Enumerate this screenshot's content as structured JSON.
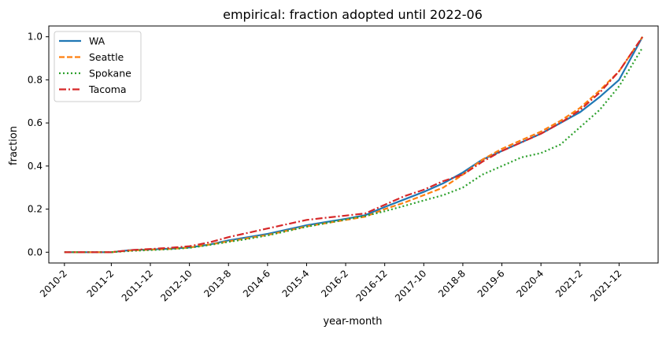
{
  "chart_data": {
    "type": "line",
    "title": "empirical: fraction adopted until 2022-06",
    "xlabel": "year-month",
    "ylabel": "fraction",
    "x_ticks": [
      "2010-2",
      "2011-2",
      "2011-12",
      "2012-10",
      "2013-8",
      "2014-6",
      "2015-4",
      "2016-2",
      "2016-12",
      "2017-10",
      "2018-8",
      "2019-6",
      "2020-4",
      "2021-2",
      "2021-12"
    ],
    "xlim": [
      "2009-10",
      "2022-10"
    ],
    "ylim": [
      -0.05,
      1.05
    ],
    "y_ticks": [
      "0.0",
      "0.2",
      "0.4",
      "0.6",
      "0.8",
      "1.0"
    ],
    "grid": false,
    "legend_position": "upper-left",
    "series": [
      {
        "name": "WA",
        "color": "#1f77b4",
        "style": "solid",
        "points": [
          [
            "2010-2",
            0.0
          ],
          [
            "2011-2",
            0.0
          ],
          [
            "2011-7",
            0.01
          ],
          [
            "2011-12",
            0.013
          ],
          [
            "2012-5",
            0.016
          ],
          [
            "2012-10",
            0.022
          ],
          [
            "2013-3",
            0.035
          ],
          [
            "2013-8",
            0.055
          ],
          [
            "2014-1",
            0.07
          ],
          [
            "2014-6",
            0.085
          ],
          [
            "2014-11",
            0.105
          ],
          [
            "2015-4",
            0.125
          ],
          [
            "2015-9",
            0.14
          ],
          [
            "2016-2",
            0.155
          ],
          [
            "2016-7",
            0.172
          ],
          [
            "2016-12",
            0.21
          ],
          [
            "2017-5",
            0.245
          ],
          [
            "2017-10",
            0.28
          ],
          [
            "2018-3",
            0.32
          ],
          [
            "2018-8",
            0.37
          ],
          [
            "2019-1",
            0.43
          ],
          [
            "2019-6",
            0.47
          ],
          [
            "2019-11",
            0.51
          ],
          [
            "2020-4",
            0.55
          ],
          [
            "2020-9",
            0.6
          ],
          [
            "2021-2",
            0.65
          ],
          [
            "2021-7",
            0.72
          ],
          [
            "2021-12",
            0.8
          ],
          [
            "2022-6",
            1.0
          ]
        ]
      },
      {
        "name": "Seattle",
        "color": "#ff7f0e",
        "style": "dashed",
        "points": [
          [
            "2010-2",
            0.0
          ],
          [
            "2011-2",
            0.0
          ],
          [
            "2011-7",
            0.008
          ],
          [
            "2011-12",
            0.012
          ],
          [
            "2012-5",
            0.015
          ],
          [
            "2012-10",
            0.022
          ],
          [
            "2013-3",
            0.035
          ],
          [
            "2013-8",
            0.05
          ],
          [
            "2014-1",
            0.065
          ],
          [
            "2014-6",
            0.08
          ],
          [
            "2014-11",
            0.1
          ],
          [
            "2015-4",
            0.12
          ],
          [
            "2015-9",
            0.135
          ],
          [
            "2016-2",
            0.15
          ],
          [
            "2016-7",
            0.165
          ],
          [
            "2016-12",
            0.2
          ],
          [
            "2017-5",
            0.23
          ],
          [
            "2017-10",
            0.265
          ],
          [
            "2018-3",
            0.3
          ],
          [
            "2018-8",
            0.36
          ],
          [
            "2019-1",
            0.43
          ],
          [
            "2019-6",
            0.48
          ],
          [
            "2019-11",
            0.52
          ],
          [
            "2020-4",
            0.56
          ],
          [
            "2020-9",
            0.61
          ],
          [
            "2021-2",
            0.67
          ],
          [
            "2021-7",
            0.75
          ],
          [
            "2021-12",
            0.84
          ],
          [
            "2022-6",
            1.0
          ]
        ]
      },
      {
        "name": "Spokane",
        "color": "#2ca02c",
        "style": "dotted",
        "points": [
          [
            "2010-2",
            0.0
          ],
          [
            "2011-2",
            0.0
          ],
          [
            "2011-7",
            0.006
          ],
          [
            "2011-12",
            0.01
          ],
          [
            "2012-5",
            0.014
          ],
          [
            "2012-10",
            0.02
          ],
          [
            "2013-3",
            0.033
          ],
          [
            "2013-8",
            0.048
          ],
          [
            "2014-1",
            0.062
          ],
          [
            "2014-6",
            0.078
          ],
          [
            "2014-11",
            0.098
          ],
          [
            "2015-4",
            0.118
          ],
          [
            "2015-9",
            0.135
          ],
          [
            "2016-2",
            0.152
          ],
          [
            "2016-7",
            0.168
          ],
          [
            "2016-12",
            0.19
          ],
          [
            "2017-5",
            0.215
          ],
          [
            "2017-10",
            0.24
          ],
          [
            "2018-3",
            0.265
          ],
          [
            "2018-8",
            0.3
          ],
          [
            "2019-1",
            0.36
          ],
          [
            "2019-6",
            0.4
          ],
          [
            "2019-11",
            0.44
          ],
          [
            "2020-4",
            0.46
          ],
          [
            "2020-9",
            0.5
          ],
          [
            "2021-2",
            0.58
          ],
          [
            "2021-7",
            0.66
          ],
          [
            "2021-12",
            0.77
          ],
          [
            "2022-6",
            0.95
          ]
        ]
      },
      {
        "name": "Tacoma",
        "color": "#d62728",
        "style": "dashdot",
        "points": [
          [
            "2010-2",
            0.0
          ],
          [
            "2011-2",
            0.0
          ],
          [
            "2011-7",
            0.01
          ],
          [
            "2011-12",
            0.015
          ],
          [
            "2012-5",
            0.02
          ],
          [
            "2012-10",
            0.028
          ],
          [
            "2013-3",
            0.045
          ],
          [
            "2013-8",
            0.07
          ],
          [
            "2014-1",
            0.09
          ],
          [
            "2014-6",
            0.11
          ],
          [
            "2014-11",
            0.13
          ],
          [
            "2015-4",
            0.15
          ],
          [
            "2015-9",
            0.16
          ],
          [
            "2016-2",
            0.17
          ],
          [
            "2016-7",
            0.18
          ],
          [
            "2016-12",
            0.22
          ],
          [
            "2017-5",
            0.26
          ],
          [
            "2017-10",
            0.29
          ],
          [
            "2018-3",
            0.33
          ],
          [
            "2018-8",
            0.36
          ],
          [
            "2019-1",
            0.42
          ],
          [
            "2019-6",
            0.47
          ],
          [
            "2019-11",
            0.51
          ],
          [
            "2020-4",
            0.55
          ],
          [
            "2020-9",
            0.6
          ],
          [
            "2021-2",
            0.66
          ],
          [
            "2021-7",
            0.74
          ],
          [
            "2021-12",
            0.84
          ],
          [
            "2022-6",
            1.0
          ]
        ]
      }
    ]
  }
}
